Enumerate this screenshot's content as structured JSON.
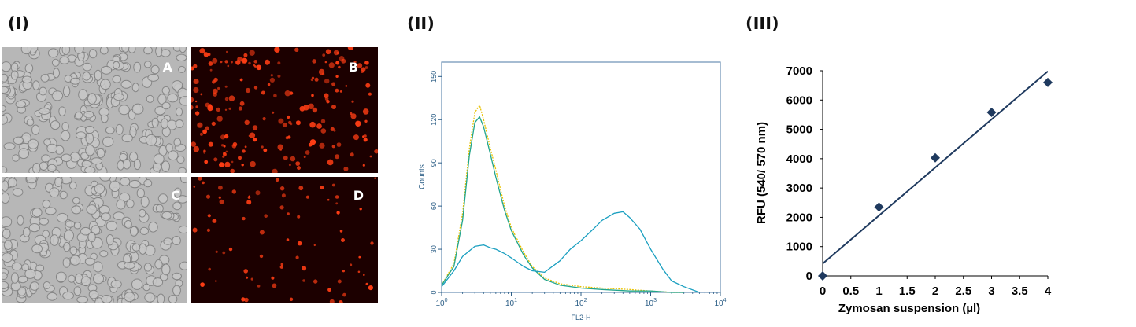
{
  "panels": {
    "p1": "(I)",
    "p2": "(II)",
    "p3": "(III)"
  },
  "micrographs": [
    {
      "letter": "A",
      "kind": "brightfield"
    },
    {
      "letter": "B",
      "kind": "fluorescence"
    },
    {
      "letter": "C",
      "kind": "brightfield"
    },
    {
      "letter": "D",
      "kind": "fluorescence"
    }
  ],
  "colors": {
    "brightfield_bg": "#b7b7b7",
    "fluor_bg": "#1c0000",
    "fluor_cell": "#ff3d14",
    "histo_cyan": "#1a9fc0",
    "histo_green": "#22a58c",
    "histo_yellow": "#e8c200",
    "histo_frame": "#6a8fb5",
    "scatter_marker": "#1f3a5f",
    "fit_line": "#1f3a5f"
  },
  "chart_data": [
    {
      "type": "line",
      "xlabel": "FL2-H",
      "ylabel": "Counts",
      "xscale": "log",
      "xlim": [
        1,
        10000
      ],
      "ylim": [
        0,
        160
      ],
      "x_ticks": [
        {
          "base": "10",
          "exp": "0",
          "value": 1
        },
        {
          "base": "10",
          "exp": "1",
          "value": 10
        },
        {
          "base": "10",
          "exp": "2",
          "value": 100
        },
        {
          "base": "10",
          "exp": "3",
          "value": 1000
        },
        {
          "base": "10",
          "exp": "4",
          "value": 10000
        }
      ],
      "y_ticks": [
        0,
        30,
        60,
        90,
        120,
        150
      ],
      "series": [
        {
          "color": "#e8c200",
          "x": [
            1,
            1.5,
            2,
            2.5,
            3,
            3.5,
            4,
            5,
            6,
            8,
            10,
            15,
            20,
            30,
            50,
            100,
            200,
            500,
            1000,
            2000,
            3000
          ],
          "y": [
            5,
            20,
            55,
            100,
            125,
            130,
            120,
            100,
            85,
            60,
            45,
            28,
            18,
            10,
            6,
            4,
            3,
            2,
            1,
            0,
            0
          ]
        },
        {
          "color": "#22a58c",
          "x": [
            1,
            1.5,
            2,
            2.5,
            3,
            3.5,
            4,
            5,
            6,
            8,
            10,
            15,
            20,
            30,
            50,
            100,
            200,
            500,
            1000,
            2000,
            3000
          ],
          "y": [
            5,
            18,
            50,
            95,
            118,
            122,
            115,
            96,
            80,
            57,
            43,
            26,
            17,
            9,
            5,
            3,
            2,
            1,
            1,
            0,
            0
          ]
        },
        {
          "color": "#1a9fc0",
          "x": [
            1,
            1.5,
            2,
            3,
            4,
            5,
            6,
            8,
            10,
            15,
            20,
            30,
            50,
            70,
            100,
            150,
            200,
            300,
            400,
            500,
            700,
            1000,
            1500,
            2000,
            3000,
            5000
          ],
          "y": [
            4,
            15,
            25,
            32,
            33,
            31,
            30,
            27,
            24,
            18,
            15,
            14,
            22,
            30,
            36,
            44,
            50,
            55,
            56,
            52,
            44,
            30,
            16,
            8,
            4,
            0
          ]
        }
      ]
    },
    {
      "type": "scatter",
      "xlabel": "Zymosan suspension (µl)",
      "ylabel": "RFU (540/ 570 nm)",
      "xlim": [
        0,
        4
      ],
      "ylim": [
        0,
        7000
      ],
      "x_ticks": [
        "0",
        "0.5",
        "1",
        "1.5",
        "2",
        "2.5",
        "3",
        "3.5",
        "4"
      ],
      "y_ticks": [
        "0",
        "1000",
        "2000",
        "3000",
        "4000",
        "5000",
        "6000",
        "7000"
      ],
      "points": {
        "x": [
          0,
          1,
          2,
          3,
          4
        ],
        "y": [
          0,
          2350,
          4030,
          5580,
          6600
        ]
      },
      "fit": {
        "x": [
          0,
          4
        ],
        "y": [
          420,
          6980
        ]
      }
    }
  ]
}
